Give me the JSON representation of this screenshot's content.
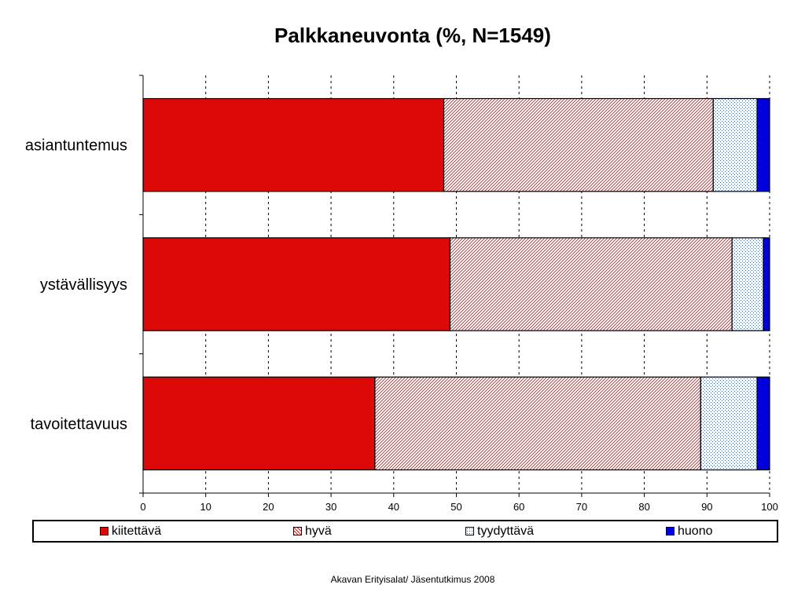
{
  "chart_data": {
    "type": "bar",
    "orientation": "horizontal",
    "stacked": true,
    "title": "Palkkaneuvonta (%, N=1549)",
    "categories": [
      "asiantuntemus",
      "ystävällisyys",
      "tavoitettavuus"
    ],
    "series": [
      {
        "name": "kiitettävä",
        "values": [
          48,
          49,
          37
        ],
        "color": "#dd0808",
        "fill": "solid"
      },
      {
        "name": "hyvä",
        "values": [
          43,
          45,
          52
        ],
        "color": "#c81f1f",
        "fill": "diagonal-hatch"
      },
      {
        "name": "tyydyttävä",
        "values": [
          7,
          5,
          9
        ],
        "color": "#3a5a8c",
        "fill": "dots"
      },
      {
        "name": "huono",
        "values": [
          2,
          1,
          2
        ],
        "color": "#0000dd",
        "fill": "solid"
      }
    ],
    "xlim": [
      0,
      100
    ],
    "xticks": [
      0,
      10,
      20,
      30,
      40,
      50,
      60,
      70,
      80,
      90,
      100
    ],
    "grid": "vertical-dashed",
    "legend_position": "bottom"
  },
  "footer": "Akavan Erityisalat/ Jäsentutkimus 2008"
}
